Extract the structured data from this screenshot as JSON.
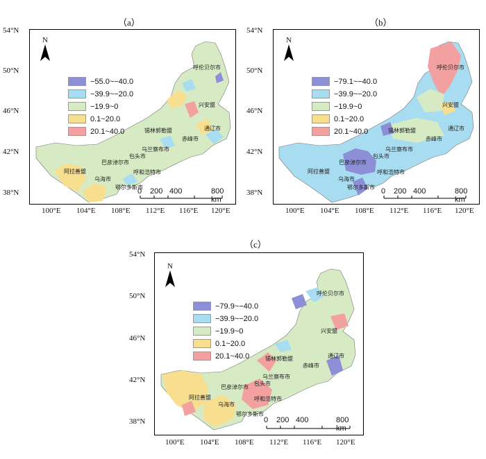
{
  "panels": [
    {
      "id": "a",
      "label": "（a）",
      "legend": [
        {
          "range": "−55.0~−40.0",
          "color": "#8c8fd6"
        },
        {
          "range": "−39.9~−20.0",
          "color": "#a8dcf0"
        },
        {
          "range": "−19.9~0",
          "color": "#d6ebc4"
        },
        {
          "range": "0.1~20.0",
          "color": "#f8df90"
        },
        {
          "range": "20.1~40.0",
          "color": "#f3a0a0"
        }
      ]
    },
    {
      "id": "b",
      "label": "（b）",
      "legend": [
        {
          "range": "−79.1~−40.0",
          "color": "#8c8fd6"
        },
        {
          "range": "−39.9~−20.0",
          "color": "#a8dcf0"
        },
        {
          "range": "−19.9~0",
          "color": "#d6ebc4"
        },
        {
          "range": "0.1~20.0",
          "color": "#f8df90"
        },
        {
          "range": "20.1~40.0",
          "color": "#f3a0a0"
        }
      ]
    },
    {
      "id": "c",
      "label": "（c）",
      "legend": [
        {
          "range": "−79.9~−40.0",
          "color": "#8c8fd6"
        },
        {
          "range": "−39.9~−20.0",
          "color": "#a8dcf0"
        },
        {
          "range": "−19.9~0",
          "color": "#d6ebc4"
        },
        {
          "range": "0.1~20.0",
          "color": "#f8df90"
        },
        {
          "range": "20.1~40.0",
          "color": "#f3a0a0"
        }
      ]
    }
  ],
  "lat_ticks": [
    "54°N",
    "50°N",
    "46°N",
    "42°N",
    "38°N"
  ],
  "lon_ticks": [
    "100°E",
    "104°E",
    "108°E",
    "112°E",
    "116°E",
    "120°E"
  ],
  "north_label": "N",
  "scale": {
    "labels": [
      "0",
      "200",
      "400",
      "800 km"
    ]
  },
  "cities": [
    "呼伦贝尔市",
    "兴安盟",
    "通辽市",
    "锡林郭勒盟",
    "赤峰市",
    "乌兰察布市",
    "包头市",
    "巴彦淖尔市",
    "呼和浩特市",
    "阿拉善盟",
    "乌海市",
    "鄂尔多斯市"
  ]
}
